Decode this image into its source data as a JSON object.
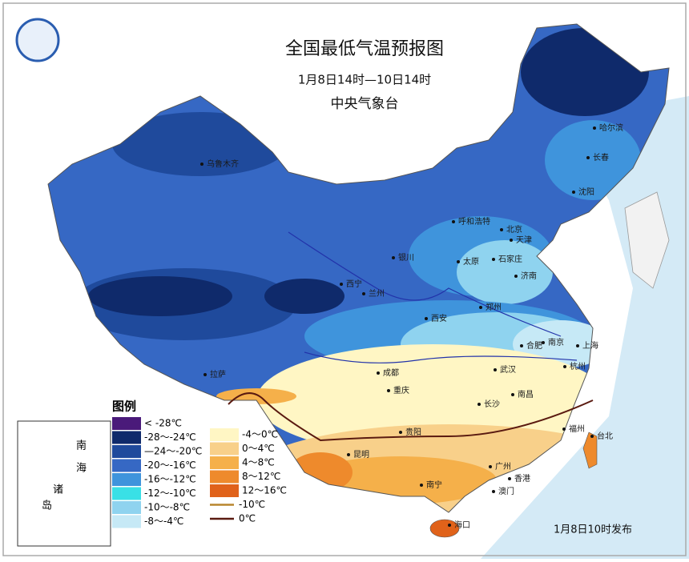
{
  "header": {
    "title": "全国最低气温预报图",
    "subtitle": "1月8日14时—10日14时",
    "issuer": "中央气象台"
  },
  "legend": {
    "title": "图例",
    "items": [
      {
        "label": "< -28℃",
        "color": "#4a1a7a",
        "swatch": "box"
      },
      {
        "label": "-28～-24℃",
        "color": "#0f2a6b",
        "swatch": "box"
      },
      {
        "label": "—24～-20℃",
        "color": "#1f4a9c",
        "swatch": "box"
      },
      {
        "label": "-20～-16℃",
        "color": "#3668c4",
        "swatch": "box"
      },
      {
        "label": "-16～-12℃",
        "color": "#3f94dc",
        "swatch": "box"
      },
      {
        "label": "-12～-10℃",
        "color": "#39e0e6",
        "swatch": "box"
      },
      {
        "label": "-10～-8℃",
        "color": "#8fd3ef",
        "swatch": "box"
      },
      {
        "label": "-8～-4℃",
        "color": "#c6e9f6",
        "swatch": "box"
      },
      {
        "label": "-4～0℃",
        "color": "#fff6c4",
        "swatch": "box"
      },
      {
        "label": "0～4℃",
        "color": "#f8d08a",
        "swatch": "box"
      },
      {
        "label": "4～8℃",
        "color": "#f5b04a",
        "swatch": "box"
      },
      {
        "label": "8～12℃",
        "color": "#ee8a2c",
        "swatch": "box"
      },
      {
        "label": "12～16℃",
        "color": "#e0621a",
        "swatch": "box"
      },
      {
        "label": "-10℃",
        "color": "#b8862e",
        "swatch": "line"
      },
      {
        "label": "0℃",
        "color": "#5a1a10",
        "swatch": "line"
      }
    ]
  },
  "cities": [
    "乌鲁木齐",
    "拉萨",
    "西宁",
    "兰州",
    "银川",
    "呼和浩特",
    "北京",
    "天津",
    "石家庄",
    "太原",
    "济南",
    "郑州",
    "西安",
    "成都",
    "重庆",
    "贵阳",
    "昆明",
    "南宁",
    "海口",
    "长沙",
    "武汉",
    "南昌",
    "合肥",
    "南京",
    "上海",
    "杭州",
    "福州",
    "台北",
    "广州",
    "香港",
    "澳门",
    "哈尔滨",
    "长春",
    "沈阳"
  ],
  "inset": {
    "labels": [
      "南",
      "海",
      "诸",
      "岛"
    ]
  },
  "footer": {
    "release": "1月8日10时发布"
  }
}
